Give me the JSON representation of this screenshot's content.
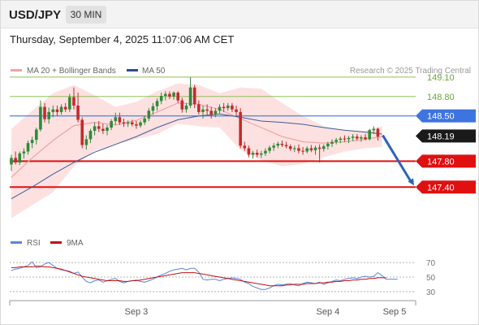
{
  "header": {
    "symbol": "USD/JPY",
    "timeframe": "30 MIN"
  },
  "timestamp": "Thursday, September 4, 2025 11:07:06 AM CET",
  "copyright": "Research © 2025 Trading Central",
  "colors": {
    "bollinger_fill": "#fde1e1",
    "ma20": "#f0a3a3",
    "ma50": "#3c5e97",
    "candle_up": "#2f8a3a",
    "candle_down": "#c6292b",
    "resistance_green": "#8fc15a",
    "pivot_blue": "#3e74e0",
    "support_red": "#e01010",
    "current_box": "#1a1a1a",
    "arrow": "#2b64b5",
    "rsi": "#5b86d6",
    "rsi_ma": "#c21010"
  },
  "chart_data": [
    {
      "type": "candlestick",
      "title": "",
      "legend": [
        {
          "name": "MA 20 + Bollinger Bands",
          "color": "#f0a3a3"
        },
        {
          "name": "MA 50",
          "color": "#2c4f8a"
        }
      ],
      "levels": [
        {
          "value": 149.1,
          "label": "149.10",
          "kind": "resistance"
        },
        {
          "value": 148.8,
          "label": "148.80",
          "kind": "resistance"
        },
        {
          "value": 148.5,
          "label": "148.50",
          "kind": "pivot"
        },
        {
          "value": 147.8,
          "label": "147.80",
          "kind": "support"
        },
        {
          "value": 147.4,
          "label": "147.40",
          "kind": "support"
        }
      ],
      "current_price": {
        "value": 148.19,
        "label": "148.19"
      },
      "forecast_arrow": {
        "from": 148.2,
        "to": 147.4
      },
      "ylim": [
        146.75,
        149.35
      ],
      "x_ticks": [
        {
          "index": 30,
          "label": "Sep 3"
        },
        {
          "index": 76,
          "label": "Sep 4"
        },
        {
          "index": 92,
          "label": "Sep 5"
        }
      ],
      "candles": [
        [
          147.75,
          147.9,
          147.65,
          147.85
        ],
        [
          147.85,
          147.95,
          147.75,
          147.78
        ],
        [
          147.78,
          147.95,
          147.74,
          147.92
        ],
        [
          147.92,
          148.0,
          147.84,
          147.95
        ],
        [
          147.95,
          148.12,
          147.9,
          148.08
        ],
        [
          148.08,
          148.18,
          148.0,
          148.13
        ],
        [
          148.13,
          148.32,
          148.06,
          148.29
        ],
        [
          148.29,
          148.74,
          148.26,
          148.64
        ],
        [
          148.64,
          148.7,
          148.4,
          148.45
        ],
        [
          148.45,
          148.63,
          148.38,
          148.56
        ],
        [
          148.56,
          148.66,
          148.48,
          148.6
        ],
        [
          148.6,
          148.66,
          148.5,
          148.56
        ],
        [
          148.56,
          148.68,
          148.52,
          148.64
        ],
        [
          148.64,
          148.7,
          148.56,
          148.6
        ],
        [
          148.6,
          148.84,
          148.56,
          148.79
        ],
        [
          148.79,
          148.94,
          148.6,
          148.66
        ],
        [
          148.66,
          148.86,
          148.4,
          148.44
        ],
        [
          148.44,
          148.48,
          148.0,
          148.05
        ],
        [
          148.05,
          148.2,
          147.98,
          148.14
        ],
        [
          148.14,
          148.3,
          148.08,
          148.27
        ],
        [
          148.27,
          148.4,
          148.2,
          148.34
        ],
        [
          148.34,
          148.42,
          148.25,
          148.3
        ],
        [
          148.3,
          148.38,
          148.22,
          148.27
        ],
        [
          148.27,
          148.36,
          148.2,
          148.32
        ],
        [
          148.32,
          148.45,
          148.28,
          148.42
        ],
        [
          148.42,
          148.55,
          148.36,
          148.48
        ],
        [
          148.48,
          148.55,
          148.36,
          148.4
        ],
        [
          148.4,
          148.46,
          148.33,
          148.38
        ],
        [
          148.38,
          148.43,
          148.33,
          148.4
        ],
        [
          148.4,
          148.44,
          148.34,
          148.37
        ],
        [
          148.37,
          148.42,
          148.3,
          148.35
        ],
        [
          148.35,
          148.43,
          148.32,
          148.4
        ],
        [
          148.4,
          148.5,
          148.36,
          148.46
        ],
        [
          148.46,
          148.62,
          148.42,
          148.58
        ],
        [
          148.58,
          148.7,
          148.52,
          148.65
        ],
        [
          148.65,
          148.77,
          148.58,
          148.73
        ],
        [
          148.73,
          148.86,
          148.68,
          148.81
        ],
        [
          148.81,
          148.88,
          148.74,
          148.84
        ],
        [
          148.84,
          148.88,
          148.76,
          148.8
        ],
        [
          148.8,
          148.88,
          148.75,
          148.86
        ],
        [
          148.86,
          148.88,
          148.7,
          148.74
        ],
        [
          148.74,
          148.78,
          148.55,
          148.6
        ],
        [
          148.6,
          148.7,
          148.55,
          148.66
        ],
        [
          148.66,
          149.1,
          148.62,
          148.94
        ],
        [
          148.94,
          148.98,
          148.62,
          148.68
        ],
        [
          148.68,
          148.74,
          148.52,
          148.56
        ],
        [
          148.56,
          148.66,
          148.46,
          148.6
        ],
        [
          148.6,
          148.68,
          148.52,
          148.58
        ],
        [
          148.58,
          148.64,
          148.46,
          148.52
        ],
        [
          148.52,
          148.62,
          148.48,
          148.58
        ],
        [
          148.58,
          148.68,
          148.54,
          148.64
        ],
        [
          148.64,
          148.7,
          148.56,
          148.62
        ],
        [
          148.62,
          148.7,
          148.58,
          148.66
        ],
        [
          148.66,
          148.7,
          148.56,
          148.6
        ],
        [
          148.6,
          148.66,
          148.5,
          148.56
        ],
        [
          148.56,
          148.62,
          148.0,
          148.04
        ],
        [
          148.04,
          148.1,
          147.96,
          148.0
        ],
        [
          148.0,
          148.04,
          147.86,
          147.9
        ],
        [
          147.9,
          147.96,
          147.84,
          147.93
        ],
        [
          147.93,
          147.98,
          147.86,
          147.9
        ],
        [
          147.9,
          147.96,
          147.85,
          147.92
        ],
        [
          147.92,
          148.0,
          147.88,
          147.96
        ],
        [
          147.96,
          148.04,
          147.92,
          148.01
        ],
        [
          148.01,
          148.08,
          147.96,
          148.04
        ],
        [
          148.04,
          148.1,
          148.0,
          148.07
        ],
        [
          148.07,
          148.12,
          148.02,
          148.05
        ],
        [
          148.05,
          148.1,
          148.0,
          148.03
        ],
        [
          148.03,
          148.06,
          147.96,
          147.99
        ],
        [
          147.99,
          148.04,
          147.94,
          148.0
        ],
        [
          148.0,
          148.06,
          147.92,
          147.96
        ],
        [
          147.96,
          148.02,
          147.9,
          147.95
        ],
        [
          147.95,
          148.03,
          147.92,
          148.0
        ],
        [
          148.0,
          148.05,
          147.94,
          147.97
        ],
        [
          147.97,
          148.04,
          147.9,
          148.01
        ],
        [
          148.01,
          148.06,
          147.78,
          147.99
        ],
        [
          147.99,
          148.06,
          147.95,
          148.03
        ],
        [
          148.03,
          148.1,
          147.98,
          148.07
        ],
        [
          148.07,
          148.14,
          148.02,
          148.1
        ],
        [
          148.1,
          148.16,
          148.06,
          148.13
        ],
        [
          148.13,
          148.18,
          148.08,
          148.15
        ],
        [
          148.15,
          148.2,
          148.1,
          148.14
        ],
        [
          148.14,
          148.19,
          148.08,
          148.16
        ],
        [
          148.16,
          148.22,
          148.11,
          148.18
        ],
        [
          148.18,
          148.22,
          148.12,
          148.15
        ],
        [
          148.15,
          148.2,
          148.1,
          148.17
        ],
        [
          148.17,
          148.22,
          148.12,
          148.14
        ],
        [
          148.14,
          148.3,
          148.12,
          148.28
        ],
        [
          148.28,
          148.34,
          148.22,
          148.3
        ],
        [
          148.3,
          148.32,
          148.12,
          148.18
        ]
      ],
      "bollinger_upper": [
        [
          0,
          148.3
        ],
        [
          5,
          148.58
        ],
        [
          10,
          148.85
        ],
        [
          15,
          148.98
        ],
        [
          20,
          148.82
        ],
        [
          25,
          148.64
        ],
        [
          30,
          148.72
        ],
        [
          35,
          148.88
        ],
        [
          40,
          149.0
        ],
        [
          45,
          148.98
        ],
        [
          50,
          148.85
        ],
        [
          55,
          148.94
        ],
        [
          60,
          148.92
        ],
        [
          65,
          148.7
        ],
        [
          70,
          148.5
        ],
        [
          75,
          148.34
        ],
        [
          80,
          148.28
        ],
        [
          85,
          148.27
        ],
        [
          89,
          148.34
        ]
      ],
      "bollinger_lower": [
        [
          0,
          146.92
        ],
        [
          5,
          147.12
        ],
        [
          10,
          147.32
        ],
        [
          15,
          147.72
        ],
        [
          20,
          147.96
        ],
        [
          25,
          148.06
        ],
        [
          30,
          148.14
        ],
        [
          35,
          148.22
        ],
        [
          40,
          148.38
        ],
        [
          45,
          148.34
        ],
        [
          50,
          148.32
        ],
        [
          55,
          147.98
        ],
        [
          60,
          147.82
        ],
        [
          65,
          147.72
        ],
        [
          70,
          147.76
        ],
        [
          75,
          147.86
        ],
        [
          80,
          147.95
        ],
        [
          85,
          148.0
        ],
        [
          89,
          148.02
        ]
      ],
      "ma20": [
        [
          0,
          147.55
        ],
        [
          5,
          147.85
        ],
        [
          10,
          148.12
        ],
        [
          15,
          148.35
        ],
        [
          20,
          148.4
        ],
        [
          25,
          148.36
        ],
        [
          30,
          148.43
        ],
        [
          35,
          148.56
        ],
        [
          40,
          148.7
        ],
        [
          45,
          148.68
        ],
        [
          50,
          148.6
        ],
        [
          55,
          148.46
        ],
        [
          60,
          148.32
        ],
        [
          65,
          148.18
        ],
        [
          70,
          148.1
        ],
        [
          75,
          148.08
        ],
        [
          80,
          148.1
        ],
        [
          85,
          148.14
        ],
        [
          89,
          148.18
        ]
      ],
      "ma50": [
        [
          0,
          147.22
        ],
        [
          5,
          147.4
        ],
        [
          10,
          147.6
        ],
        [
          15,
          147.78
        ],
        [
          20,
          147.94
        ],
        [
          25,
          148.06
        ],
        [
          30,
          148.18
        ],
        [
          35,
          148.32
        ],
        [
          40,
          148.44
        ],
        [
          45,
          148.5
        ],
        [
          50,
          148.53
        ],
        [
          55,
          148.48
        ],
        [
          60,
          148.42
        ],
        [
          65,
          148.4
        ],
        [
          70,
          148.37
        ],
        [
          75,
          148.32
        ],
        [
          80,
          148.28
        ],
        [
          85,
          148.25
        ],
        [
          89,
          148.22
        ]
      ]
    },
    {
      "type": "line",
      "title": "",
      "legend": [
        {
          "name": "RSI",
          "color": "#5b86d6"
        },
        {
          "name": "9MA",
          "color": "#c21010"
        }
      ],
      "ylim": [
        22,
        78
      ],
      "y_ticks": [
        70,
        50,
        30
      ],
      "series": [
        {
          "name": "RSI",
          "values": [
            59,
            61,
            62,
            64,
            66,
            71,
            63,
            64,
            68,
            70,
            66,
            62,
            60,
            59,
            58,
            55,
            57,
            50,
            44,
            42,
            45,
            46,
            43,
            45,
            47,
            48,
            44,
            42,
            44,
            45,
            46,
            44,
            43,
            45,
            47,
            50,
            53,
            55,
            58,
            60,
            61,
            62,
            60,
            62,
            62,
            57,
            47,
            46,
            47,
            47,
            45,
            47,
            48,
            49,
            48,
            47,
            43,
            41,
            37,
            35,
            33,
            33,
            35,
            38,
            40,
            39,
            40,
            41,
            39,
            38,
            41,
            43,
            42,
            41,
            43,
            40,
            42,
            44,
            46,
            45,
            47,
            48,
            49,
            48,
            50,
            51,
            50,
            51,
            56,
            52,
            47
          ]
        },
        {
          "name": "9MA",
          "values": [
            63,
            63,
            64,
            64,
            64,
            64,
            65,
            65,
            64,
            64,
            63,
            62,
            61,
            59,
            57,
            55,
            53,
            51,
            50,
            49,
            48,
            47,
            46,
            45,
            45,
            45,
            45,
            44,
            44,
            45,
            45,
            46,
            47,
            48,
            49,
            50,
            51,
            52,
            53,
            54,
            55,
            56,
            56,
            56,
            56,
            55,
            54,
            53,
            52,
            51,
            50,
            49,
            48,
            47,
            46,
            45,
            44,
            43,
            42,
            41,
            40,
            39,
            38,
            38,
            38,
            38,
            39,
            39,
            40,
            40,
            40,
            41,
            41,
            41,
            42,
            42,
            43,
            43,
            44,
            44,
            45,
            45,
            46,
            46,
            47,
            47,
            48,
            48,
            49,
            49,
            49
          ]
        }
      ]
    }
  ]
}
